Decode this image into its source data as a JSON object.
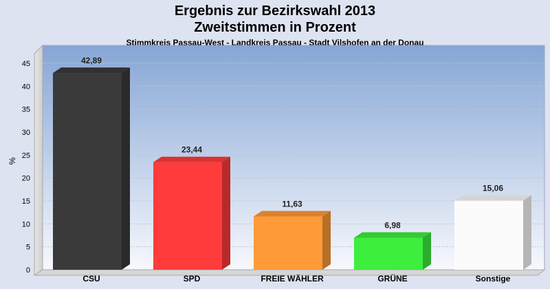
{
  "chart_data": {
    "type": "bar",
    "title": "Ergebnis zur Bezirkswahl 2013",
    "title_line2": "Zweitstimmen in Prozent",
    "subtitle": "Stimmkreis Passau-West - Landkreis Passau - Stadt Vilshofen an der Donau",
    "ylabel": "%",
    "xlabel": "",
    "ylim": [
      0,
      48
    ],
    "yticks": [
      0,
      5,
      10,
      15,
      20,
      25,
      30,
      35,
      40,
      45
    ],
    "grid": true,
    "legend": "none",
    "categories": [
      "CSU",
      "SPD",
      "FREIE WÄHLER",
      "GRÜNE",
      "Sonstige"
    ],
    "values": [
      42.89,
      23.44,
      11.63,
      6.98,
      15.06
    ],
    "value_labels": [
      "42,89",
      "23,44",
      "11,63",
      "6,98",
      "15,06"
    ],
    "colors": [
      "#3a3a3a",
      "#ff3b3b",
      "#ff9a38",
      "#3dee3d",
      "#fbfbfb"
    ]
  }
}
